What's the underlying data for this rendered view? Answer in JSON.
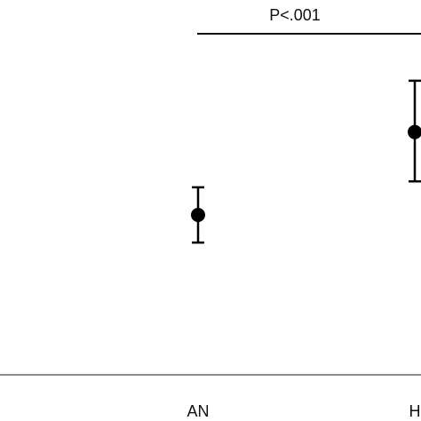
{
  "chart_data": {
    "type": "scatter",
    "categories": [
      "AN",
      "H"
    ],
    "series": [
      {
        "values": [
          {
            "category": "AN",
            "mean": 3.55,
            "lower": 2.85,
            "upper": 4.25
          },
          {
            "category": "H",
            "mean": 5.65,
            "lower": 4.4,
            "upper": 6.95
          }
        ]
      }
    ],
    "annotations": [
      {
        "text": "P<.001",
        "from": "AN",
        "to": "H"
      }
    ],
    "ylim": [
      -0.5,
      8.5
    ],
    "grid": false,
    "colors": {
      "marker": "#000000",
      "axis": "#8c8c8c",
      "bracket": "#111111"
    }
  }
}
